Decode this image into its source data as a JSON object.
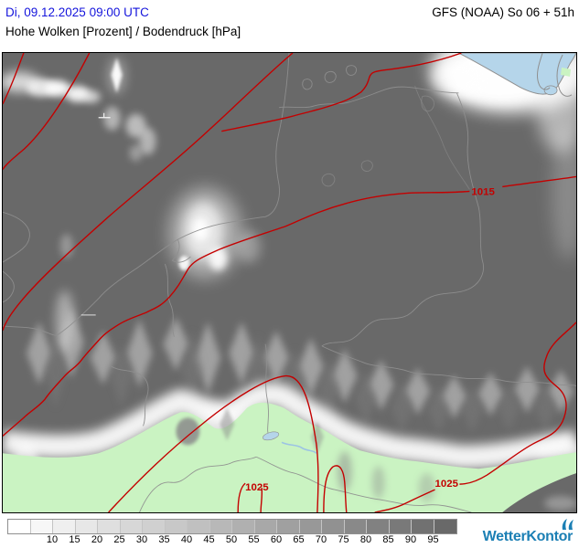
{
  "header": {
    "datetime": "Di, 09.12.2025 09:00 UTC",
    "model": "GFS (NOAA) So 06 + 51h",
    "title": "Hohe Wolken [Prozent] / Bodendruck [hPa]"
  },
  "map": {
    "field": "Hohe Wolken",
    "unit": "Prozent",
    "overlay": "Bodendruck [hPa]",
    "isobar_labels": [
      {
        "text": "1015"
      },
      {
        "text": "1025"
      },
      {
        "text": "1025"
      }
    ],
    "colors": {
      "cloud_base_gray": "#696969",
      "clear_land_green": "#caf3c2",
      "sea_blue": "#b5d5ea",
      "isobar_red": "#c40000",
      "border_gray": "#8f8f8f"
    }
  },
  "legend": {
    "unit": "Prozent",
    "values": [
      "10",
      "15",
      "20",
      "25",
      "30",
      "35",
      "40",
      "45",
      "50",
      "55",
      "60",
      "65",
      "70",
      "75",
      "80",
      "85",
      "90",
      "95"
    ],
    "cell_colors": [
      "#ffffff",
      "#f7f7f7",
      "#efefef",
      "#e7e7e7",
      "#dfdfdf",
      "#d7d7d7",
      "#d0d0d0",
      "#c8c8c8",
      "#c0c0c0",
      "#b8b8b8",
      "#b0b0b0",
      "#a8a8a8",
      "#a0a0a0",
      "#989898",
      "#919191",
      "#898989",
      "#818181",
      "#797979",
      "#717171",
      "#696969"
    ],
    "textured_cells": [
      5,
      6,
      7,
      8
    ]
  },
  "logo": {
    "text": "WetterKontor",
    "color": "#1b7fb4"
  }
}
